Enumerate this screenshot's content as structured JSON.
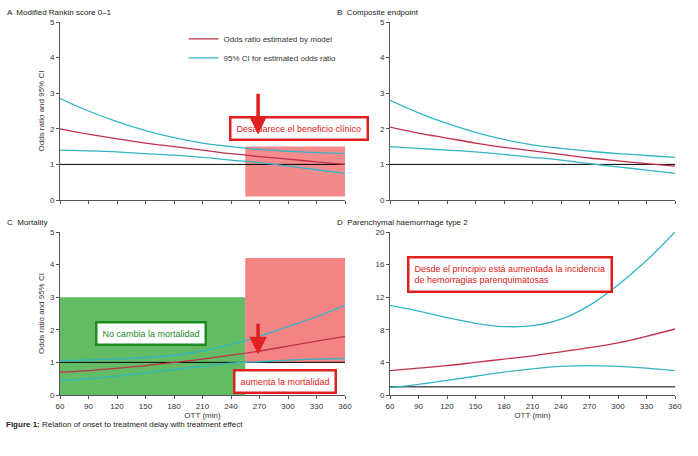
{
  "caption": "Figure 1: Relation of onset to treatment delay with treatment effect",
  "chart_data": [
    {
      "type": "line",
      "title": "A  Modified Rankin score 0–1",
      "y_label": "Odds ratio and 95% CI",
      "x": [
        60,
        90,
        120,
        150,
        180,
        210,
        240,
        270,
        300,
        330,
        360
      ],
      "xlim": [
        60,
        360
      ],
      "xticks": [
        60,
        90,
        120,
        150,
        180,
        210,
        240,
        270,
        300,
        330,
        360
      ],
      "ylim": [
        0,
        5
      ],
      "yticks": [
        0,
        1,
        2,
        3,
        4,
        5
      ],
      "grid": false,
      "tick_labels": "y",
      "legend": "top right",
      "hline": 1,
      "series": [
        {
          "name": "Odds ratio estimated by model",
          "color": "#c0304a",
          "values": [
            2.0,
            1.85,
            1.72,
            1.6,
            1.5,
            1.4,
            1.3,
            1.22,
            1.15,
            1.07,
            1.0
          ]
        },
        {
          "name": "95% CI for estimated odds ratio",
          "color": "#33b5c8",
          "values": [
            2.85,
            2.5,
            2.2,
            1.95,
            1.75,
            1.6,
            1.5,
            1.42,
            1.37,
            1.33,
            1.3
          ]
        },
        {
          "name": "95% CI for estimated odds ratio",
          "color": "#33b5c8",
          "values": [
            1.4,
            1.38,
            1.35,
            1.3,
            1.26,
            1.2,
            1.12,
            1.05,
            0.95,
            0.85,
            0.75
          ]
        }
      ],
      "regions": [
        {
          "x0": 255,
          "x1": 360,
          "y0": 0.1,
          "y1": 1.5,
          "color": "rgba(240,90,90,0.7)"
        }
      ],
      "annotations": [
        {
          "text": "Desaparece el beneficio clínico",
          "color": "#e02020"
        }
      ]
    },
    {
      "type": "line",
      "title": "B  Composite endpoint",
      "x": [
        60,
        90,
        120,
        150,
        180,
        210,
        240,
        270,
        300,
        330,
        360
      ],
      "xlim": [
        60,
        360
      ],
      "xticks": [
        60,
        90,
        120,
        150,
        180,
        210,
        240,
        270,
        300,
        330,
        360
      ],
      "ylim": [
        0,
        5
      ],
      "yticks": [
        0,
        1,
        2,
        3,
        4,
        5
      ],
      "grid": false,
      "tick_labels": "y",
      "hline": 1,
      "series": [
        {
          "name": "Odds ratio estimated by model",
          "color": "#c0304a",
          "values": [
            2.05,
            1.88,
            1.74,
            1.6,
            1.48,
            1.38,
            1.28,
            1.18,
            1.1,
            1.02,
            0.95
          ]
        },
        {
          "name": "95% CI for estimated odds ratio",
          "color": "#33b5c8",
          "values": [
            2.8,
            2.45,
            2.15,
            1.9,
            1.7,
            1.55,
            1.45,
            1.37,
            1.3,
            1.25,
            1.2
          ]
        },
        {
          "name": "95% CI for estimated odds ratio",
          "color": "#33b5c8",
          "values": [
            1.5,
            1.45,
            1.4,
            1.35,
            1.28,
            1.2,
            1.12,
            1.02,
            0.93,
            0.84,
            0.75
          ]
        }
      ]
    },
    {
      "type": "line",
      "title": "C  Mortality",
      "x_label": "OTT (min)",
      "y_label": "Odds ratio and 95% CI",
      "x": [
        60,
        90,
        120,
        150,
        180,
        210,
        240,
        270,
        300,
        330,
        360
      ],
      "xlim": [
        60,
        360
      ],
      "xticks": [
        60,
        90,
        120,
        150,
        180,
        210,
        240,
        270,
        300,
        330,
        360
      ],
      "ylim": [
        0,
        5
      ],
      "yticks": [
        0,
        1,
        2,
        3,
        4,
        5
      ],
      "grid": false,
      "hline": 1,
      "series": [
        {
          "name": "Odds ratio estimated by model",
          "color": "#c0304a",
          "values": [
            0.7,
            0.75,
            0.82,
            0.9,
            1.0,
            1.1,
            1.22,
            1.35,
            1.5,
            1.65,
            1.8
          ]
        },
        {
          "name": "95% CI for estimated odds ratio",
          "color": "#33b5c8",
          "values": [
            1.05,
            1.08,
            1.1,
            1.15,
            1.22,
            1.35,
            1.55,
            1.8,
            2.1,
            2.4,
            2.75
          ]
        },
        {
          "name": "95% CI for estimated odds ratio",
          "color": "#33b5c8",
          "values": [
            0.45,
            0.5,
            0.58,
            0.68,
            0.78,
            0.88,
            0.98,
            1.02,
            1.07,
            1.1,
            1.12
          ]
        }
      ],
      "regions": [
        {
          "x0": 60,
          "x1": 255,
          "y0": 0,
          "y1": 3.0,
          "color": "rgba(60,170,60,0.8)"
        },
        {
          "x0": 255,
          "x1": 360,
          "y0": 1.0,
          "y1": 4.2,
          "color": "rgba(240,90,90,0.75)"
        }
      ],
      "annotations": [
        {
          "text": "No cambia la mortalidad",
          "color": "#1e8c1e"
        },
        {
          "text": "aumenta la mortalidad",
          "color": "#e02020"
        }
      ]
    },
    {
      "type": "line",
      "title": "D  Parenchymal haemorrhage type 2",
      "x_label": "OTT (min)",
      "x": [
        60,
        90,
        120,
        150,
        180,
        210,
        240,
        270,
        300,
        330,
        360
      ],
      "xlim": [
        60,
        360
      ],
      "xticks": [
        60,
        90,
        120,
        150,
        180,
        210,
        240,
        270,
        300,
        330,
        360
      ],
      "ylim": [
        0,
        20
      ],
      "yticks": [
        0,
        4,
        8,
        12,
        16,
        20
      ],
      "grid": false,
      "hline": 1,
      "series": [
        {
          "name": "Odds ratio estimated by model",
          "color": "#c0304a",
          "values": [
            3.0,
            3.3,
            3.6,
            4.0,
            4.4,
            4.8,
            5.3,
            5.8,
            6.4,
            7.2,
            8.1
          ]
        },
        {
          "name": "95% CI for estimated odds ratio",
          "color": "#33b5c8",
          "values": [
            11.0,
            10.3,
            9.5,
            8.8,
            8.4,
            8.5,
            9.3,
            11.0,
            13.5,
            16.5,
            20.0
          ]
        },
        {
          "name": "95% CI for estimated odds ratio",
          "color": "#33b5c8",
          "values": [
            0.9,
            1.3,
            1.8,
            2.3,
            2.8,
            3.2,
            3.5,
            3.6,
            3.5,
            3.3,
            3.0
          ]
        }
      ],
      "annotations": [
        {
          "text": "Desde el principio está aumentada la incidencia\nde hemorragias parenquimatosas",
          "color": "#e02020"
        }
      ]
    }
  ]
}
